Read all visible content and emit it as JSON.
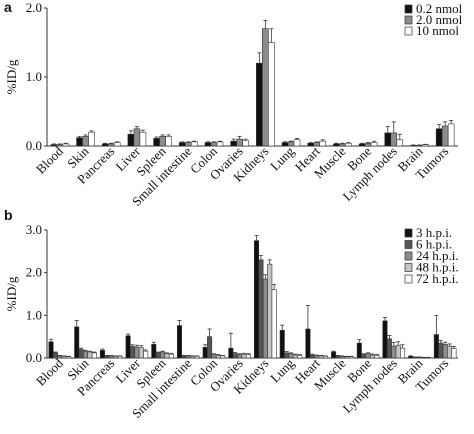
{
  "chart_data": [
    {
      "type": "bar",
      "panel": "a",
      "ylabel": "%ID/g",
      "ylim": [
        0,
        2.0
      ],
      "yticks": [
        "0.0",
        "1.0",
        "2.0"
      ],
      "legend_position": "top-right",
      "categories": [
        "Blood",
        "Skin",
        "Pancreas",
        "Liver",
        "Spleen",
        "Small intestine",
        "Colon",
        "Ovaries",
        "Kidneys",
        "Lung",
        "Heart",
        "Muscle",
        "Bone",
        "Lymph nodes",
        "Brain",
        "Tumors"
      ],
      "series": [
        {
          "name": "0.2 nmol",
          "color": "#111111",
          "values": [
            0.02,
            0.12,
            0.03,
            0.17,
            0.11,
            0.05,
            0.05,
            0.07,
            1.2,
            0.05,
            0.04,
            0.03,
            0.03,
            0.19,
            0.01,
            0.25
          ],
          "errors": [
            0.01,
            0.02,
            0.01,
            0.05,
            0.02,
            0.01,
            0.01,
            0.03,
            0.15,
            0.01,
            0.01,
            0.01,
            0.01,
            0.09,
            0.005,
            0.06
          ]
        },
        {
          "name": "2.0 nmol",
          "color": "#8c8c8c",
          "values": [
            0.02,
            0.14,
            0.03,
            0.25,
            0.14,
            0.05,
            0.05,
            0.1,
            1.7,
            0.06,
            0.05,
            0.03,
            0.04,
            0.19,
            0.01,
            0.29
          ],
          "errors": [
            0.01,
            0.02,
            0.01,
            0.03,
            0.02,
            0.01,
            0.01,
            0.04,
            0.12,
            0.01,
            0.01,
            0.01,
            0.01,
            0.16,
            0.005,
            0.06
          ]
        },
        {
          "name": "10 nmol",
          "color": "#ffffff",
          "values": [
            0.03,
            0.2,
            0.05,
            0.2,
            0.14,
            0.06,
            0.06,
            0.08,
            1.5,
            0.09,
            0.07,
            0.04,
            0.05,
            0.09,
            0.02,
            0.32
          ],
          "errors": [
            0.01,
            0.02,
            0.01,
            0.03,
            0.02,
            0.01,
            0.01,
            0.02,
            0.2,
            0.02,
            0.02,
            0.01,
            0.02,
            0.08,
            0.005,
            0.05
          ]
        }
      ]
    },
    {
      "type": "bar",
      "panel": "b",
      "ylabel": "%ID/g",
      "ylim": [
        0,
        3.0
      ],
      "yticks": [
        "0.0",
        "1.0",
        "2.0",
        "3.0"
      ],
      "legend_position": "top-right",
      "categories": [
        "Blood",
        "Skin",
        "Pancreas",
        "Liver",
        "Spleen",
        "Small intestine",
        "Colon",
        "Ovaries",
        "Kidneys",
        "Lung",
        "Heart",
        "Muscle",
        "Bone",
        "Lymph nodes",
        "Brain",
        "Tumors"
      ],
      "series": [
        {
          "name": "3 h.p.i.",
          "color": "#111111",
          "values": [
            0.38,
            0.73,
            0.18,
            0.52,
            0.32,
            0.76,
            0.25,
            0.23,
            2.75,
            0.65,
            0.68,
            0.14,
            0.35,
            0.87,
            0.04,
            0.55
          ],
          "errors": [
            0.06,
            0.15,
            0.03,
            0.04,
            0.05,
            0.12,
            0.06,
            0.35,
            0.12,
            0.12,
            0.55,
            0.02,
            0.08,
            0.08,
            0.01,
            0.45
          ]
        },
        {
          "name": "6 h.p.i.",
          "color": "#555555",
          "values": [
            0.12,
            0.2,
            0.05,
            0.27,
            0.12,
            0.05,
            0.5,
            0.1,
            2.3,
            0.12,
            0.07,
            0.05,
            0.08,
            0.45,
            0.02,
            0.35
          ],
          "errors": [
            0.02,
            0.03,
            0.01,
            0.04,
            0.02,
            0.01,
            0.18,
            0.03,
            0.1,
            0.03,
            0.02,
            0.01,
            0.02,
            0.08,
            0.005,
            0.06
          ]
        },
        {
          "name": "24 h.p.i.",
          "color": "#8c8c8c",
          "values": [
            0.05,
            0.16,
            0.05,
            0.26,
            0.14,
            0.05,
            0.08,
            0.08,
            1.85,
            0.1,
            0.06,
            0.04,
            0.1,
            0.28,
            0.02,
            0.32
          ],
          "errors": [
            0.01,
            0.02,
            0.01,
            0.04,
            0.02,
            0.01,
            0.02,
            0.02,
            0.1,
            0.02,
            0.01,
            0.01,
            0.02,
            0.08,
            0.005,
            0.05
          ]
        },
        {
          "name": "48 h.p.i.",
          "color": "#c4c4c4",
          "values": [
            0.04,
            0.14,
            0.04,
            0.24,
            0.1,
            0.04,
            0.06,
            0.09,
            2.2,
            0.07,
            0.05,
            0.03,
            0.07,
            0.3,
            0.01,
            0.28
          ],
          "errors": [
            0.01,
            0.02,
            0.01,
            0.05,
            0.02,
            0.01,
            0.02,
            0.02,
            0.1,
            0.02,
            0.01,
            0.01,
            0.02,
            0.08,
            0.005,
            0.05
          ]
        },
        {
          "name": "72 h.p.i.",
          "color": "#ffffff",
          "values": [
            0.03,
            0.12,
            0.04,
            0.16,
            0.09,
            0.04,
            0.05,
            0.08,
            1.6,
            0.06,
            0.04,
            0.03,
            0.06,
            0.23,
            0.01,
            0.22
          ],
          "errors": [
            0.01,
            0.02,
            0.01,
            0.03,
            0.02,
            0.01,
            0.01,
            0.02,
            0.12,
            0.02,
            0.01,
            0.01,
            0.02,
            0.08,
            0.005,
            0.05
          ]
        }
      ]
    }
  ]
}
